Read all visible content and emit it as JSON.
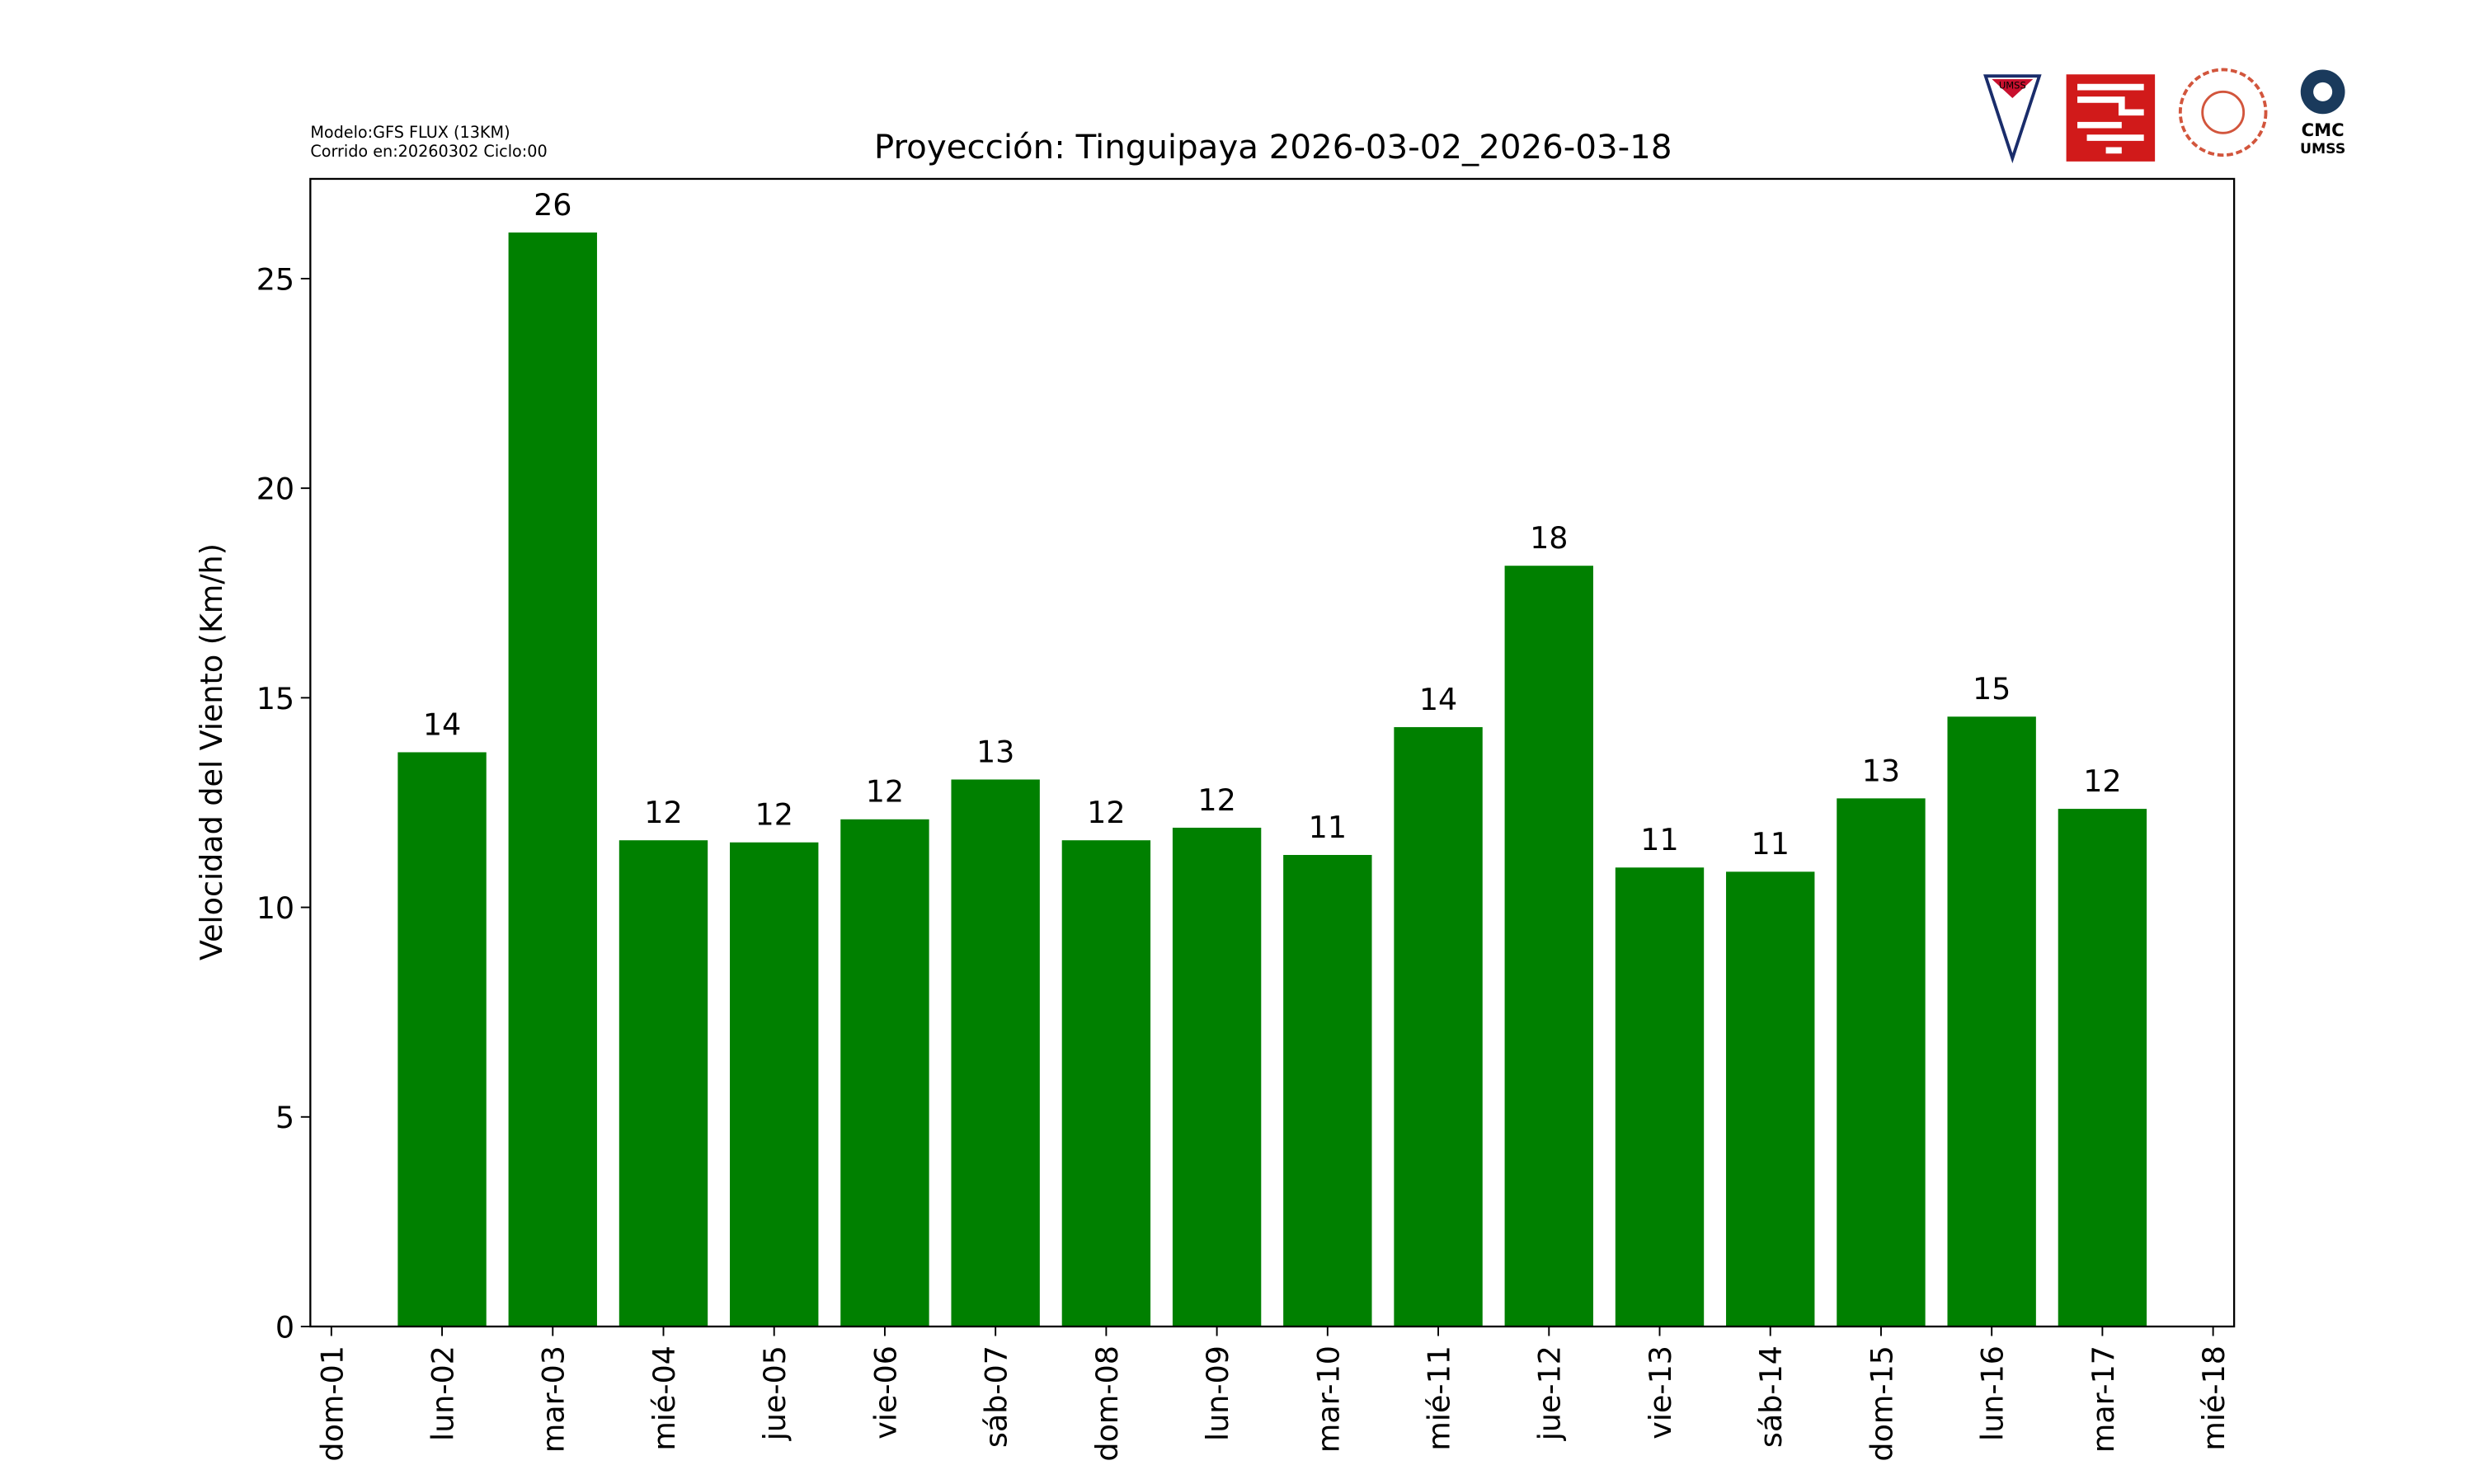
{
  "chart_data": {
    "type": "bar",
    "title": "Proyección: Tinguipaya  2026-03-02_2026-03-18",
    "model_note": "Modelo:GFS FLUX (13KM)",
    "run_note": "Corrido en:20260302 Ciclo:00",
    "y_label": "Velocidad del Viento (Km/h)",
    "categories": [
      "dom-01",
      "lun-02",
      "mar-03",
      "mié-04",
      "jue-05",
      "vie-06",
      "sáb-07",
      "dom-08",
      "lun-09",
      "mar-10",
      "mié-11",
      "jue-12",
      "vie-13",
      "sáb-14",
      "dom-15",
      "lun-16",
      "mar-17",
      "mié-18"
    ],
    "values": [
      null,
      13.7,
      26.1,
      11.6,
      11.55,
      12.1,
      13.05,
      11.6,
      11.9,
      11.25,
      14.3,
      18.15,
      10.95,
      10.85,
      12.6,
      14.55,
      12.35,
      null
    ],
    "value_labels": [
      null,
      "14",
      "26",
      "12",
      "12",
      "12",
      "13",
      "12",
      "12",
      "11",
      "14",
      "18",
      "11",
      "11",
      "13",
      "15",
      "12",
      null
    ],
    "color": "#008000",
    "xlim": [
      -0.19,
      17.19
    ],
    "ylim": [
      0,
      27.38
    ],
    "yticks": [
      0,
      5,
      10,
      15,
      20,
      25
    ],
    "logos": {
      "umss": "UMSS",
      "cmc": "CMC",
      "cmc_sub": "UMSS"
    }
  }
}
